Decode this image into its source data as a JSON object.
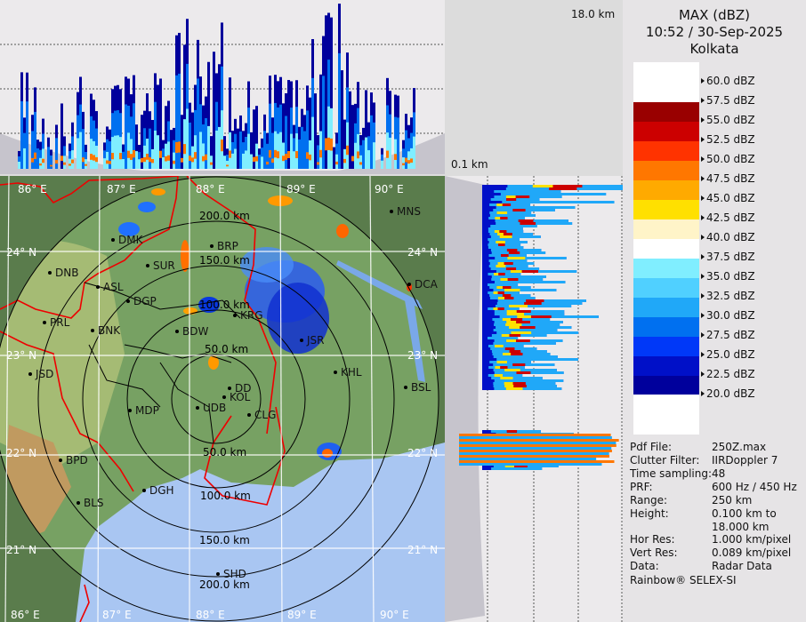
{
  "legend": {
    "title": "MAX (dBZ)",
    "datetime": "10:52 / 30-Sep-2025",
    "station": "Kolkata",
    "ticks": [
      "60.0 dBZ",
      "57.5 dBZ",
      "55.0 dBZ",
      "52.5 dBZ",
      "50.0 dBZ",
      "47.5 dBZ",
      "45.0 dBZ",
      "42.5 dBZ",
      "40.0 dBZ",
      "37.5 dBZ",
      "35.0 dBZ",
      "32.5 dBZ",
      "30.0 dBZ",
      "27.5 dBZ",
      "25.0 dBZ",
      "22.5 dBZ",
      "20.0 dBZ"
    ],
    "colors": [
      "#990000",
      "#cc0000",
      "#ff3300",
      "#ff7700",
      "#ffaa00",
      "#ffe000",
      "#fff4c8",
      "#ffffff",
      "#80eeff",
      "#50d0ff",
      "#20a8f8",
      "#0070f0",
      "#0038f8",
      "#0010c8",
      "#00009c"
    ]
  },
  "info": [
    {
      "key": "Pdf File:",
      "value": "250Z.max"
    },
    {
      "key": "Clutter Filter:",
      "value": "IIRDoppler 7"
    },
    {
      "key": "Time sampling:",
      "value": "48"
    },
    {
      "key": "PRF:",
      "value": "600 Hz / 450 Hz"
    },
    {
      "key": "Range:",
      "value": "250 km"
    },
    {
      "key": "Height:",
      "value": "0.100 km to"
    },
    {
      "key": "",
      "value": "18.000 km"
    },
    {
      "key": "Hor Res:",
      "value": "1.000 km/pixel"
    },
    {
      "key": "Vert Res:",
      "value": "0.089 km/pixel"
    },
    {
      "key": "Data:",
      "value": "Radar Data"
    }
  ],
  "credit": "Rainbow® SELEX-SI",
  "profile": {
    "top_height": "18.0 km",
    "bottom_height": "0.1 km"
  },
  "map": {
    "lon_labels": [
      "86° E",
      "87° E",
      "88° E",
      "89° E",
      "90° E"
    ],
    "lat_labels": [
      "24° N",
      "23° N",
      "22° N",
      "21° N"
    ],
    "ring_labels_north": [
      "200.0 km",
      "150.0 km",
      "100.0 km",
      "50.0 km"
    ],
    "ring_labels_south": [
      "50.0 km",
      "100.0 km",
      "150.0 km",
      "200.0 km"
    ],
    "cities": [
      "MNS",
      "DMK",
      "BRP",
      "SUR",
      "DNB",
      "ASL",
      "DGP",
      "KRG",
      "PRL",
      "BNK",
      "BDW",
      "JSR",
      "JSD",
      "KHL",
      "DD",
      "KOL",
      "UDB",
      "CLG",
      "BSL",
      "DCA",
      "MDP",
      "BPD",
      "DGH",
      "BLS",
      "SHD"
    ]
  }
}
